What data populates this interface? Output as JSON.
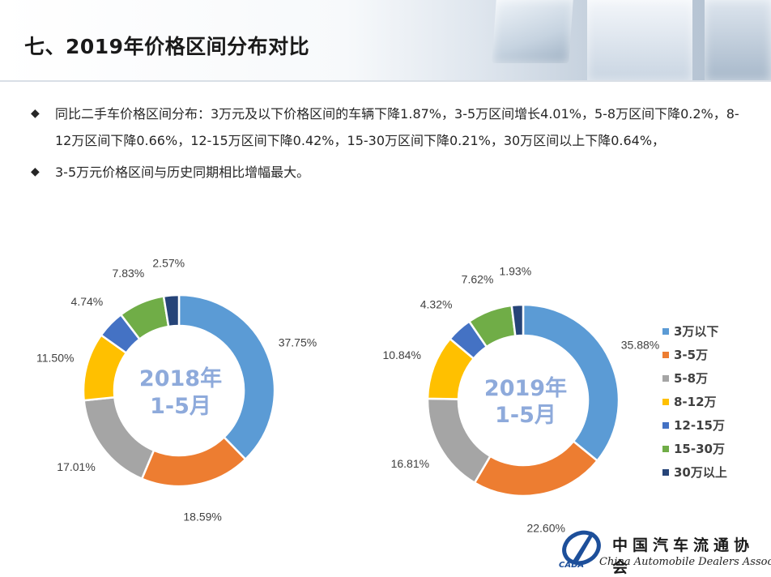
{
  "page_title": "七、2019年价格区间分布对比",
  "bullets": [
    {
      "mark": "◆",
      "text": "同比二手车价格区间分布：3万元及以下价格区间的车辆下降1.87%，3-5万区间增长4.01%，5-8万区间下降0.2%，8-12万区间下降0.66%，12-15万区间下降0.42%，15-30万区间下降0.21%，30万区间以上下降0.64%，"
    },
    {
      "mark": "◆",
      "text": "3-5万元价格区间与历史同期相比增幅最大。"
    }
  ],
  "chart_data": [
    {
      "type": "pie",
      "donut": true,
      "center_label": [
        "2018年",
        "1-5月"
      ],
      "categories": [
        "3万以下",
        "3-5万",
        "5-8万",
        "8-12万",
        "12-15万",
        "15-30万",
        "30万以上"
      ],
      "values": [
        37.75,
        18.59,
        17.01,
        11.5,
        4.74,
        7.83,
        2.57
      ],
      "labels": [
        "37.75%",
        "18.59%",
        "17.01%",
        "11.50%",
        "4.74%",
        "7.83%",
        "2.57%"
      ]
    },
    {
      "type": "pie",
      "donut": true,
      "center_label": [
        "2019年",
        "1-5月"
      ],
      "categories": [
        "3万以下",
        "3-5万",
        "5-8万",
        "8-12万",
        "12-15万",
        "15-30万",
        "30万以上"
      ],
      "values": [
        35.88,
        22.6,
        16.81,
        10.84,
        4.32,
        7.62,
        1.93
      ],
      "labels": [
        "35.88%",
        "22.60%",
        "16.81%",
        "10.84%",
        "4.32%",
        "7.62%",
        "1.93%"
      ]
    }
  ],
  "legend": {
    "position": "right",
    "items": [
      "3万以下",
      "3-5万",
      "5-8万",
      "8-12万",
      "12-15万",
      "15-30万",
      "30万以上"
    ]
  },
  "colors": {
    "series": [
      "#5b9bd5",
      "#ed7d31",
      "#a5a5a5",
      "#ffc000",
      "#4472c4",
      "#70ad47",
      "#264478"
    ],
    "center_label": "#8eaadb",
    "data_label": "#404040"
  },
  "logo": {
    "name_cn": "中国汽车流通协会",
    "name_en": "China Automobile Dealers Association",
    "abbr": "CADA"
  }
}
